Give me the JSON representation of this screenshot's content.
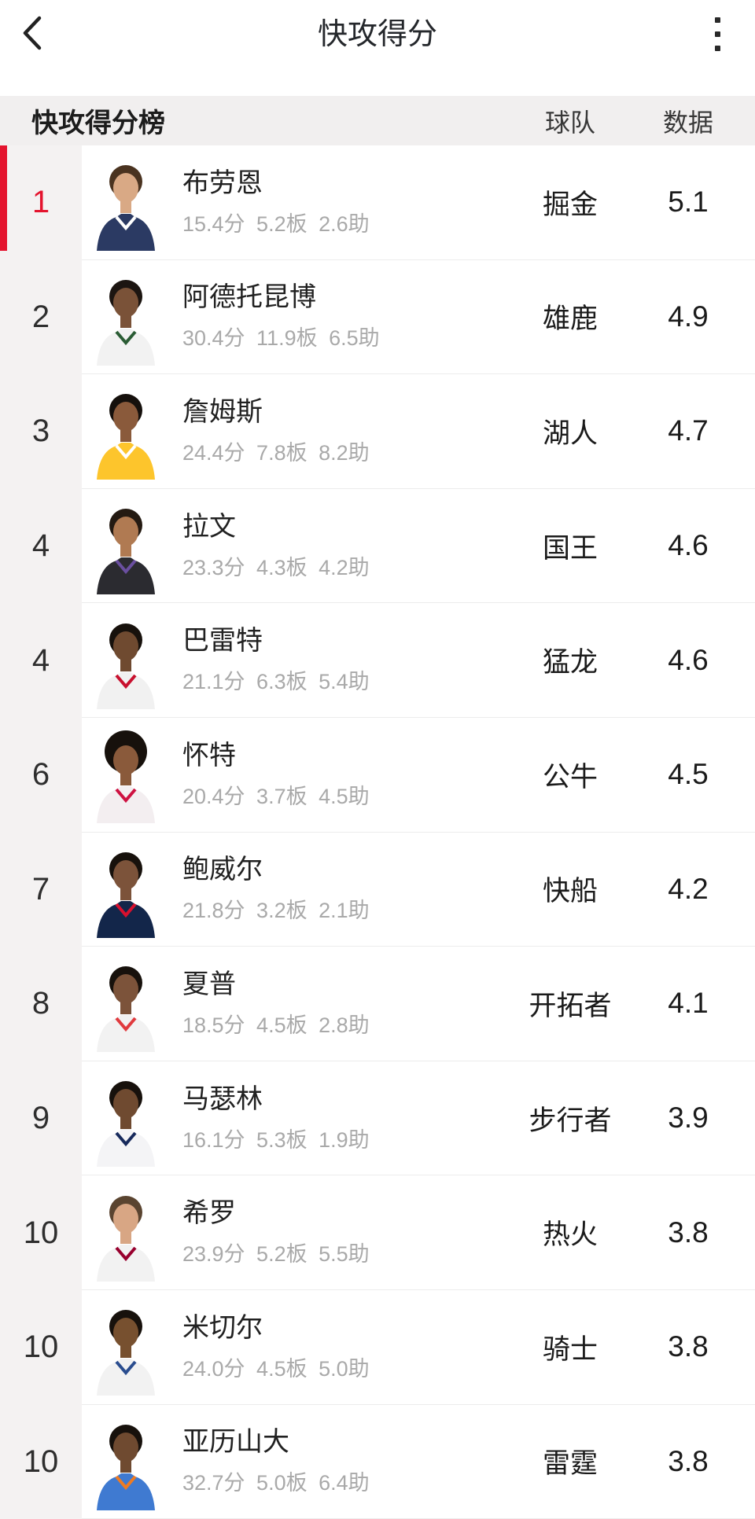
{
  "app_bar": {
    "title": "快攻得分",
    "back_icon": "chevron-left-icon",
    "menu_icon": "kebab-menu-icon"
  },
  "table_header": {
    "title": "快攻得分榜",
    "col_team": "球队",
    "col_value": "数据"
  },
  "colors": {
    "accent_red": "#e4142e",
    "gutter_bg": "#f4f2f2",
    "divider": "#ececec",
    "stats_gray": "#a9a9a9"
  },
  "rows": [
    {
      "rank": "1",
      "highlight": true,
      "name": "布劳恩",
      "stats": "15.4分 5.2板 2.6助",
      "team": "掘金",
      "value": "5.1",
      "avatar": {
        "skin": "#d9a985",
        "hair": "#4a3320",
        "jersey": "#2b3a63",
        "trim": "#ffffff"
      }
    },
    {
      "rank": "2",
      "highlight": false,
      "name": "阿德托昆博",
      "stats": "30.4分 11.9板 6.5助",
      "team": "雄鹿",
      "value": "4.9",
      "avatar": {
        "skin": "#7a5238",
        "hair": "#1c1511",
        "jersey": "#f2f2f2",
        "trim": "#2a5c34"
      }
    },
    {
      "rank": "3",
      "highlight": false,
      "name": "詹姆斯",
      "stats": "24.4分 7.8板 8.2助",
      "team": "湖人",
      "value": "4.7",
      "avatar": {
        "skin": "#8a5a3b",
        "hair": "#15100c",
        "jersey": "#fdc52c",
        "trim": "#ffffff"
      }
    },
    {
      "rank": "4",
      "highlight": false,
      "name": "拉文",
      "stats": "23.3分 4.3板 4.2助",
      "team": "国王",
      "value": "4.6",
      "avatar": {
        "skin": "#b07a52",
        "hair": "#241a12",
        "jersey": "#2b2b30",
        "trim": "#6a4fa0"
      }
    },
    {
      "rank": "4",
      "highlight": false,
      "name": "巴雷特",
      "stats": "21.1分 6.3板 5.4助",
      "team": "猛龙",
      "value": "4.6",
      "avatar": {
        "skin": "#6f4a30",
        "hair": "#17110c",
        "jersey": "#f1f1f1",
        "trim": "#c8102e"
      }
    },
    {
      "rank": "6",
      "highlight": false,
      "name": "怀特",
      "stats": "20.4分 3.7板 4.5助",
      "team": "公牛",
      "value": "4.5",
      "avatar": {
        "skin": "#8a5a3b",
        "hair": "#17110c",
        "jersey": "#f3eef0",
        "trim": "#ce1141",
        "afro": true
      }
    },
    {
      "rank": "7",
      "highlight": false,
      "name": "鲍威尔",
      "stats": "21.8分 3.2板 2.1助",
      "team": "快船",
      "value": "4.2",
      "avatar": {
        "skin": "#7c533a",
        "hair": "#17110c",
        "jersey": "#13264a",
        "trim": "#d8102e"
      }
    },
    {
      "rank": "8",
      "highlight": false,
      "name": "夏普",
      "stats": "18.5分 4.5板 2.8助",
      "team": "开拓者",
      "value": "4.1",
      "avatar": {
        "skin": "#7c533a",
        "hair": "#17110c",
        "jersey": "#f2f2f2",
        "trim": "#e03a3e"
      }
    },
    {
      "rank": "9",
      "highlight": false,
      "name": "马瑟林",
      "stats": "16.1分 5.3板 1.9助",
      "team": "步行者",
      "value": "3.9",
      "avatar": {
        "skin": "#6f4a30",
        "hair": "#17110c",
        "jersey": "#f4f4f6",
        "trim": "#172a5c"
      }
    },
    {
      "rank": "10",
      "highlight": false,
      "name": "希罗",
      "stats": "23.9分 5.2板 5.5助",
      "team": "热火",
      "value": "3.8",
      "avatar": {
        "skin": "#d8a684",
        "hair": "#5a4430",
        "jersey": "#f2f2f2",
        "trim": "#98002e"
      }
    },
    {
      "rank": "10",
      "highlight": false,
      "name": "米切尔",
      "stats": "24.0分 4.5板 5.0助",
      "team": "骑士",
      "value": "3.8",
      "avatar": {
        "skin": "#77502f",
        "hair": "#17110c",
        "jersey": "#f2f2f2",
        "trim": "#2a4d8f"
      }
    },
    {
      "rank": "10",
      "highlight": false,
      "name": "亚历山大",
      "stats": "32.7分 5.0板 6.4助",
      "team": "雷霆",
      "value": "3.8",
      "avatar": {
        "skin": "#6f4a30",
        "hair": "#17110c",
        "jersey": "#3f7ad1",
        "trim": "#ef7b22"
      }
    }
  ]
}
